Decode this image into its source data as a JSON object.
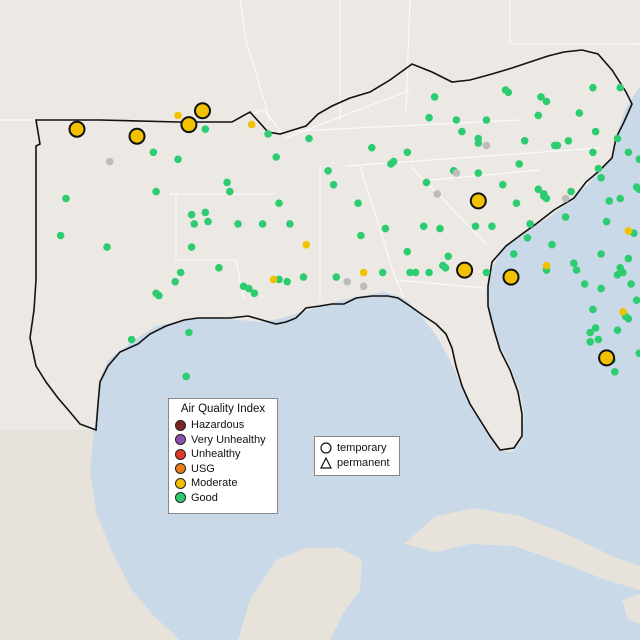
{
  "colors": {
    "water": "#c9d9e8",
    "land": "#ece9e4",
    "mexico_land": "#e7e2da",
    "border": "#111111",
    "state_lines": "#ffffff"
  },
  "legend": {
    "title": "Air Quality Index",
    "items": [
      {
        "label": "Hazardous",
        "color": "#7e2424"
      },
      {
        "label": "Very Unhealthy",
        "color": "#8e4fb0"
      },
      {
        "label": "Unhealthy",
        "color": "#e2382b"
      },
      {
        "label": "USG",
        "color": "#e87b1c"
      },
      {
        "label": "Moderate",
        "color": "#f2c200"
      },
      {
        "label": "Good",
        "color": "#2ecc71"
      }
    ]
  },
  "type_legend": {
    "temporary_label": "temporary",
    "permanent_label": "permanent"
  },
  "monitors": {
    "moderate_large": [
      [
        -101.5,
        36.6
      ],
      [
        -99.3,
        36.3
      ],
      [
        -97.4,
        36.8
      ],
      [
        -96.9,
        37.4
      ],
      [
        -86.8,
        33.5
      ],
      [
        -87.3,
        30.5
      ],
      [
        -85.6,
        30.2
      ],
      [
        -80.2,
        26.1
      ],
      [
        -82.1,
        26.7
      ],
      [
        -80.1,
        25.8
      ]
    ],
    "moderate_small": [
      [
        -97.8,
        37.2
      ],
      [
        -95.1,
        36.8
      ],
      [
        -93.1,
        31.6
      ],
      [
        -94.3,
        30.1
      ],
      [
        -91.0,
        30.4
      ],
      [
        -84.3,
        30.7
      ],
      [
        -81.5,
        28.7
      ],
      [
        -81.3,
        32.2
      ],
      [
        -80.1,
        26.0
      ],
      [
        -80.3,
        26.3
      ]
    ],
    "gray": [
      [
        -100.3,
        35.2
      ],
      [
        -87.6,
        34.7
      ],
      [
        -83.6,
        33.6
      ],
      [
        -91.0,
        29.8
      ],
      [
        -91.6,
        30.0
      ],
      [
        -86.5,
        35.9
      ],
      [
        -88.3,
        33.8
      ]
    ],
    "good": [
      [
        -96.8,
        36.6
      ],
      [
        -97.8,
        35.3
      ],
      [
        -98.7,
        35.6
      ],
      [
        -96.0,
        34.3
      ],
      [
        -94.5,
        36.4
      ],
      [
        -95.9,
        33.9
      ],
      [
        -96.8,
        33.0
      ],
      [
        -97.3,
        32.9
      ],
      [
        -96.7,
        32.6
      ],
      [
        -97.2,
        32.5
      ],
      [
        -95.6,
        32.5
      ],
      [
        -94.7,
        32.5
      ],
      [
        -98.6,
        33.9
      ],
      [
        -97.7,
        30.4
      ],
      [
        -97.9,
        30.0
      ],
      [
        -98.5,
        29.4
      ],
      [
        -98.6,
        29.5
      ],
      [
        -95.4,
        29.8
      ],
      [
        -95.2,
        29.7
      ],
      [
        -95.0,
        29.5
      ],
      [
        -94.1,
        30.1
      ],
      [
        -93.8,
        30.0
      ],
      [
        -97.4,
        27.8
      ],
      [
        -99.5,
        27.5
      ],
      [
        -97.5,
        25.9
      ],
      [
        -101.9,
        33.6
      ],
      [
        -102.1,
        32.0
      ],
      [
        -106.4,
        31.8
      ],
      [
        -106.3,
        31.7
      ],
      [
        -104.6,
        31.7
      ],
      [
        -100.4,
        31.5
      ],
      [
        -97.3,
        31.5
      ],
      [
        -96.3,
        30.6
      ],
      [
        -94.1,
        33.4
      ],
      [
        -94.2,
        35.4
      ],
      [
        -92.3,
        34.8
      ],
      [
        -92.1,
        34.2
      ],
      [
        -93.0,
        36.2
      ],
      [
        -90.7,
        35.8
      ],
      [
        -90.0,
        35.1
      ],
      [
        -91.2,
        33.4
      ],
      [
        -90.2,
        32.3
      ],
      [
        -89.1,
        30.4
      ],
      [
        -88.6,
        30.4
      ],
      [
        -88.1,
        30.7
      ],
      [
        -88.0,
        30.6
      ],
      [
        -86.8,
        34.7
      ],
      [
        -87.7,
        34.8
      ],
      [
        -85.9,
        34.2
      ],
      [
        -85.4,
        33.4
      ],
      [
        -86.3,
        32.4
      ],
      [
        -85.5,
        31.2
      ],
      [
        -87.9,
        31.1
      ],
      [
        -84.4,
        33.7
      ],
      [
        -84.4,
        33.8
      ],
      [
        -84.3,
        33.6
      ],
      [
        -84.6,
        34.0
      ],
      [
        -83.4,
        33.9
      ],
      [
        -82.0,
        33.5
      ],
      [
        -83.6,
        32.8
      ],
      [
        -84.9,
        32.5
      ],
      [
        -81.1,
        32.1
      ],
      [
        -84.1,
        31.6
      ],
      [
        -83.3,
        30.8
      ],
      [
        -82.3,
        31.2
      ],
      [
        -81.7,
        30.3
      ],
      [
        -81.5,
        30.4
      ],
      [
        -81.6,
        30.6
      ],
      [
        -82.3,
        29.7
      ],
      [
        -81.0,
        29.2
      ],
      [
        -81.4,
        28.5
      ],
      [
        -81.3,
        28.4
      ],
      [
        -82.5,
        28.0
      ],
      [
        -82.7,
        27.8
      ],
      [
        -82.4,
        27.5
      ],
      [
        -81.9,
        26.6
      ],
      [
        -80.6,
        28.1
      ],
      [
        -80.3,
        27.3
      ],
      [
        -81.8,
        26.1
      ],
      [
        -80.1,
        26.7
      ],
      [
        -80.4,
        25.5
      ],
      [
        -84.3,
        30.5
      ],
      [
        -85.7,
        30.2
      ],
      [
        -86.5,
        30.4
      ],
      [
        -87.2,
        30.4
      ],
      [
        -89.4,
        31.3
      ],
      [
        -88.7,
        34.3
      ],
      [
        -86.8,
        36.2
      ],
      [
        -86.8,
        36.0
      ],
      [
        -85.3,
        35.1
      ],
      [
        -83.9,
        35.9
      ],
      [
        -84.0,
        35.9
      ],
      [
        -82.5,
        36.5
      ],
      [
        -89.9,
        35.2
      ],
      [
        -87.4,
        36.5
      ],
      [
        -85.7,
        38.2
      ],
      [
        -85.8,
        38.3
      ],
      [
        -84.5,
        38.0
      ],
      [
        -82.6,
        38.4
      ],
      [
        -84.3,
        37.8
      ],
      [
        -83.1,
        37.3
      ],
      [
        -86.5,
        37.0
      ],
      [
        -87.6,
        37.0
      ],
      [
        -88.6,
        37.1
      ],
      [
        -81.6,
        38.4
      ],
      [
        -80.2,
        37.3
      ],
      [
        -79.9,
        37.3
      ],
      [
        -79.1,
        37.4
      ],
      [
        -77.5,
        37.6
      ],
      [
        -77.4,
        37.5
      ],
      [
        -76.3,
        36.9
      ],
      [
        -76.1,
        36.8
      ],
      [
        -78.5,
        38.0
      ],
      [
        -79.4,
        36.6
      ],
      [
        -80.8,
        36.9
      ],
      [
        -80.8,
        35.2
      ],
      [
        -80.9,
        35.3
      ],
      [
        -80.0,
        35.9
      ],
      [
        -78.6,
        35.8
      ],
      [
        -78.9,
        36.0
      ],
      [
        -77.9,
        35.0
      ],
      [
        -77.0,
        35.1
      ],
      [
        -77.9,
        34.2
      ],
      [
        -82.6,
        35.6
      ],
      [
        -81.3,
        35.6
      ],
      [
        -79.9,
        35.1
      ],
      [
        -80.1,
        36.1
      ],
      [
        -79.5,
        35.7
      ],
      [
        -78.1,
        36.4
      ],
      [
        -76.6,
        36.3
      ],
      [
        -77.4,
        35.6
      ],
      [
        -79.0,
        34.6
      ],
      [
        -80.9,
        34.0
      ],
      [
        -81.0,
        34.1
      ],
      [
        -82.4,
        34.9
      ],
      [
        -82.3,
        34.5
      ],
      [
        -79.9,
        32.8
      ],
      [
        -80.0,
        32.9
      ],
      [
        -80.7,
        33.5
      ],
      [
        -81.6,
        33.6
      ],
      [
        -79.0,
        33.7
      ],
      [
        -78.9,
        35.2
      ],
      [
        -81.7,
        36.2
      ],
      [
        -76.8,
        39.3
      ],
      [
        -77.0,
        38.9
      ],
      [
        -78.9,
        38.0
      ],
      [
        -80.5,
        37.2
      ],
      [
        -77.4,
        38.2
      ],
      [
        -75.6,
        37.9
      ],
      [
        -83.5,
        36.1
      ],
      [
        -84.6,
        37.2
      ],
      [
        -85.1,
        36.1
      ],
      [
        -88.4,
        38.0
      ],
      [
        -89.4,
        35.6
      ],
      [
        -88.8,
        32.4
      ],
      [
        -90.3,
        30.4
      ],
      [
        -92.0,
        30.2
      ],
      [
        -93.2,
        30.2
      ],
      [
        -91.1,
        32.0
      ],
      [
        -93.7,
        32.5
      ],
      [
        -89.3,
        30.4
      ],
      [
        -88.2,
        32.3
      ],
      [
        -86.9,
        32.4
      ],
      [
        -85.0,
        31.9
      ],
      [
        -83.2,
        30.5
      ],
      [
        -82.9,
        29.9
      ],
      [
        -82.6,
        28.8
      ],
      [
        -82.7,
        27.4
      ],
      [
        -81.7,
        27.9
      ],
      [
        -80.9,
        26.9
      ],
      [
        -81.2,
        29.9
      ],
      [
        -80.5,
        27.7
      ],
      [
        -80.2,
        25.5
      ],
      [
        -80.1,
        26.2
      ],
      [
        -82.1,
        32.6
      ],
      [
        -81.3,
        31.0
      ]
    ]
  }
}
